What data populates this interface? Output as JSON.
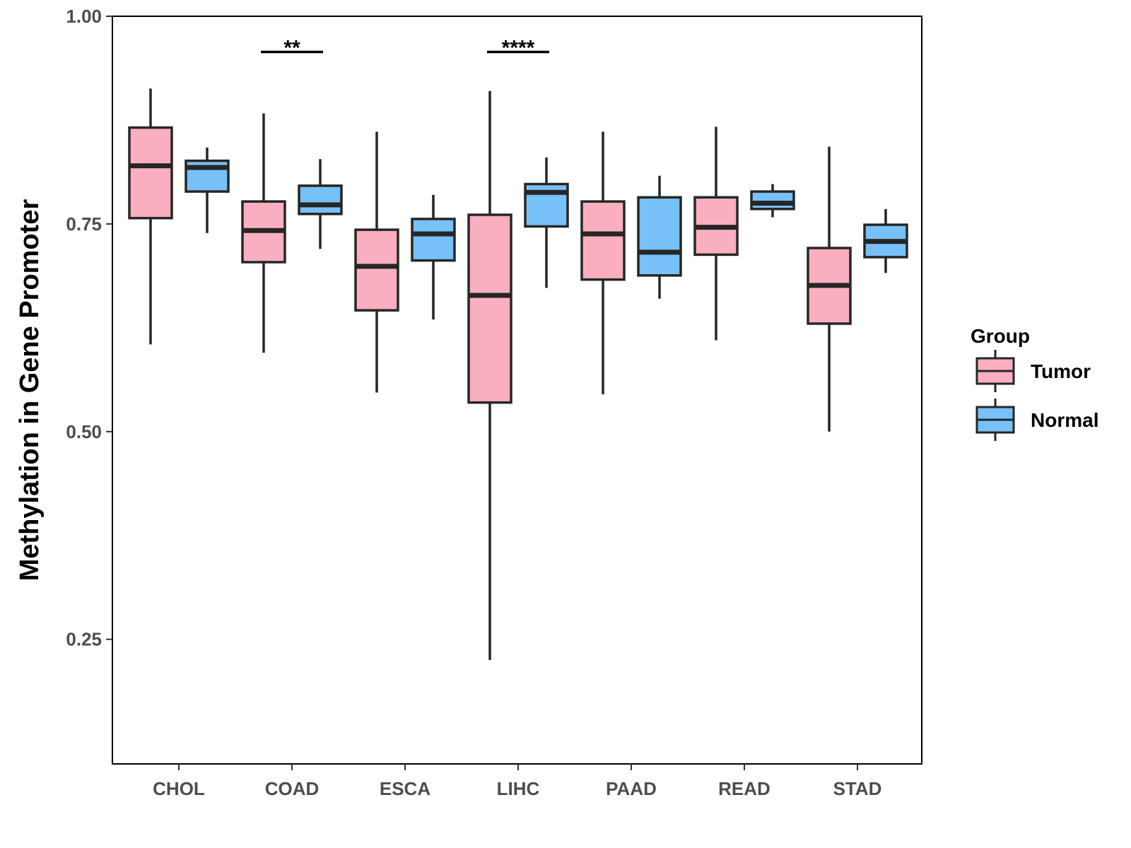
{
  "chart_data": {
    "type": "boxplot",
    "title": "",
    "xlabel": "",
    "ylabel": "Methylation in Gene Promoter",
    "ylim": [
      0.1,
      1.0
    ],
    "yticks": [
      0.25,
      0.5,
      0.75,
      1.0
    ],
    "ytick_labels": [
      "0.25",
      "0.50",
      "0.75",
      "1.00"
    ],
    "grid": false,
    "categories": [
      "CHOL",
      "COAD",
      "ESCA",
      "LIHC",
      "PAAD",
      "READ",
      "STAD"
    ],
    "series": [
      {
        "name": "Tumor",
        "color": "#F9AFC0",
        "boxes": [
          {
            "min": 0.605,
            "q1": 0.757,
            "median": 0.82,
            "q3": 0.866,
            "max": 0.913
          },
          {
            "min": 0.595,
            "q1": 0.704,
            "median": 0.742,
            "q3": 0.777,
            "max": 0.883
          },
          {
            "min": 0.547,
            "q1": 0.646,
            "median": 0.699,
            "q3": 0.743,
            "max": 0.861
          },
          {
            "min": 0.225,
            "q1": 0.535,
            "median": 0.664,
            "q3": 0.761,
            "max": 0.91
          },
          {
            "min": 0.545,
            "q1": 0.683,
            "median": 0.738,
            "q3": 0.777,
            "max": 0.861
          },
          {
            "min": 0.61,
            "q1": 0.713,
            "median": 0.746,
            "q3": 0.782,
            "max": 0.867
          },
          {
            "min": 0.5,
            "q1": 0.63,
            "median": 0.676,
            "q3": 0.721,
            "max": 0.843
          }
        ]
      },
      {
        "name": "Normal",
        "color": "#78C0F8",
        "boxes": [
          {
            "min": 0.739,
            "q1": 0.789,
            "median": 0.818,
            "q3": 0.826,
            "max": 0.842
          },
          {
            "min": 0.72,
            "q1": 0.762,
            "median": 0.773,
            "q3": 0.796,
            "max": 0.828
          },
          {
            "min": 0.635,
            "q1": 0.706,
            "median": 0.738,
            "q3": 0.756,
            "max": 0.785
          },
          {
            "min": 0.673,
            "q1": 0.747,
            "median": 0.788,
            "q3": 0.798,
            "max": 0.83
          },
          {
            "min": 0.66,
            "q1": 0.688,
            "median": 0.716,
            "q3": 0.782,
            "max": 0.808
          },
          {
            "min": 0.758,
            "q1": 0.768,
            "median": 0.775,
            "q3": 0.789,
            "max": 0.798
          },
          {
            "min": 0.691,
            "q1": 0.71,
            "median": 0.729,
            "q3": 0.749,
            "max": 0.768
          }
        ]
      }
    ],
    "significance": [
      {
        "category": "COAD",
        "label": "**",
        "y": 0.957
      },
      {
        "category": "LIHC",
        "label": "****",
        "y": 0.957
      }
    ],
    "legend": {
      "title": "Group",
      "position": "right",
      "items": [
        "Tumor",
        "Normal"
      ]
    }
  }
}
